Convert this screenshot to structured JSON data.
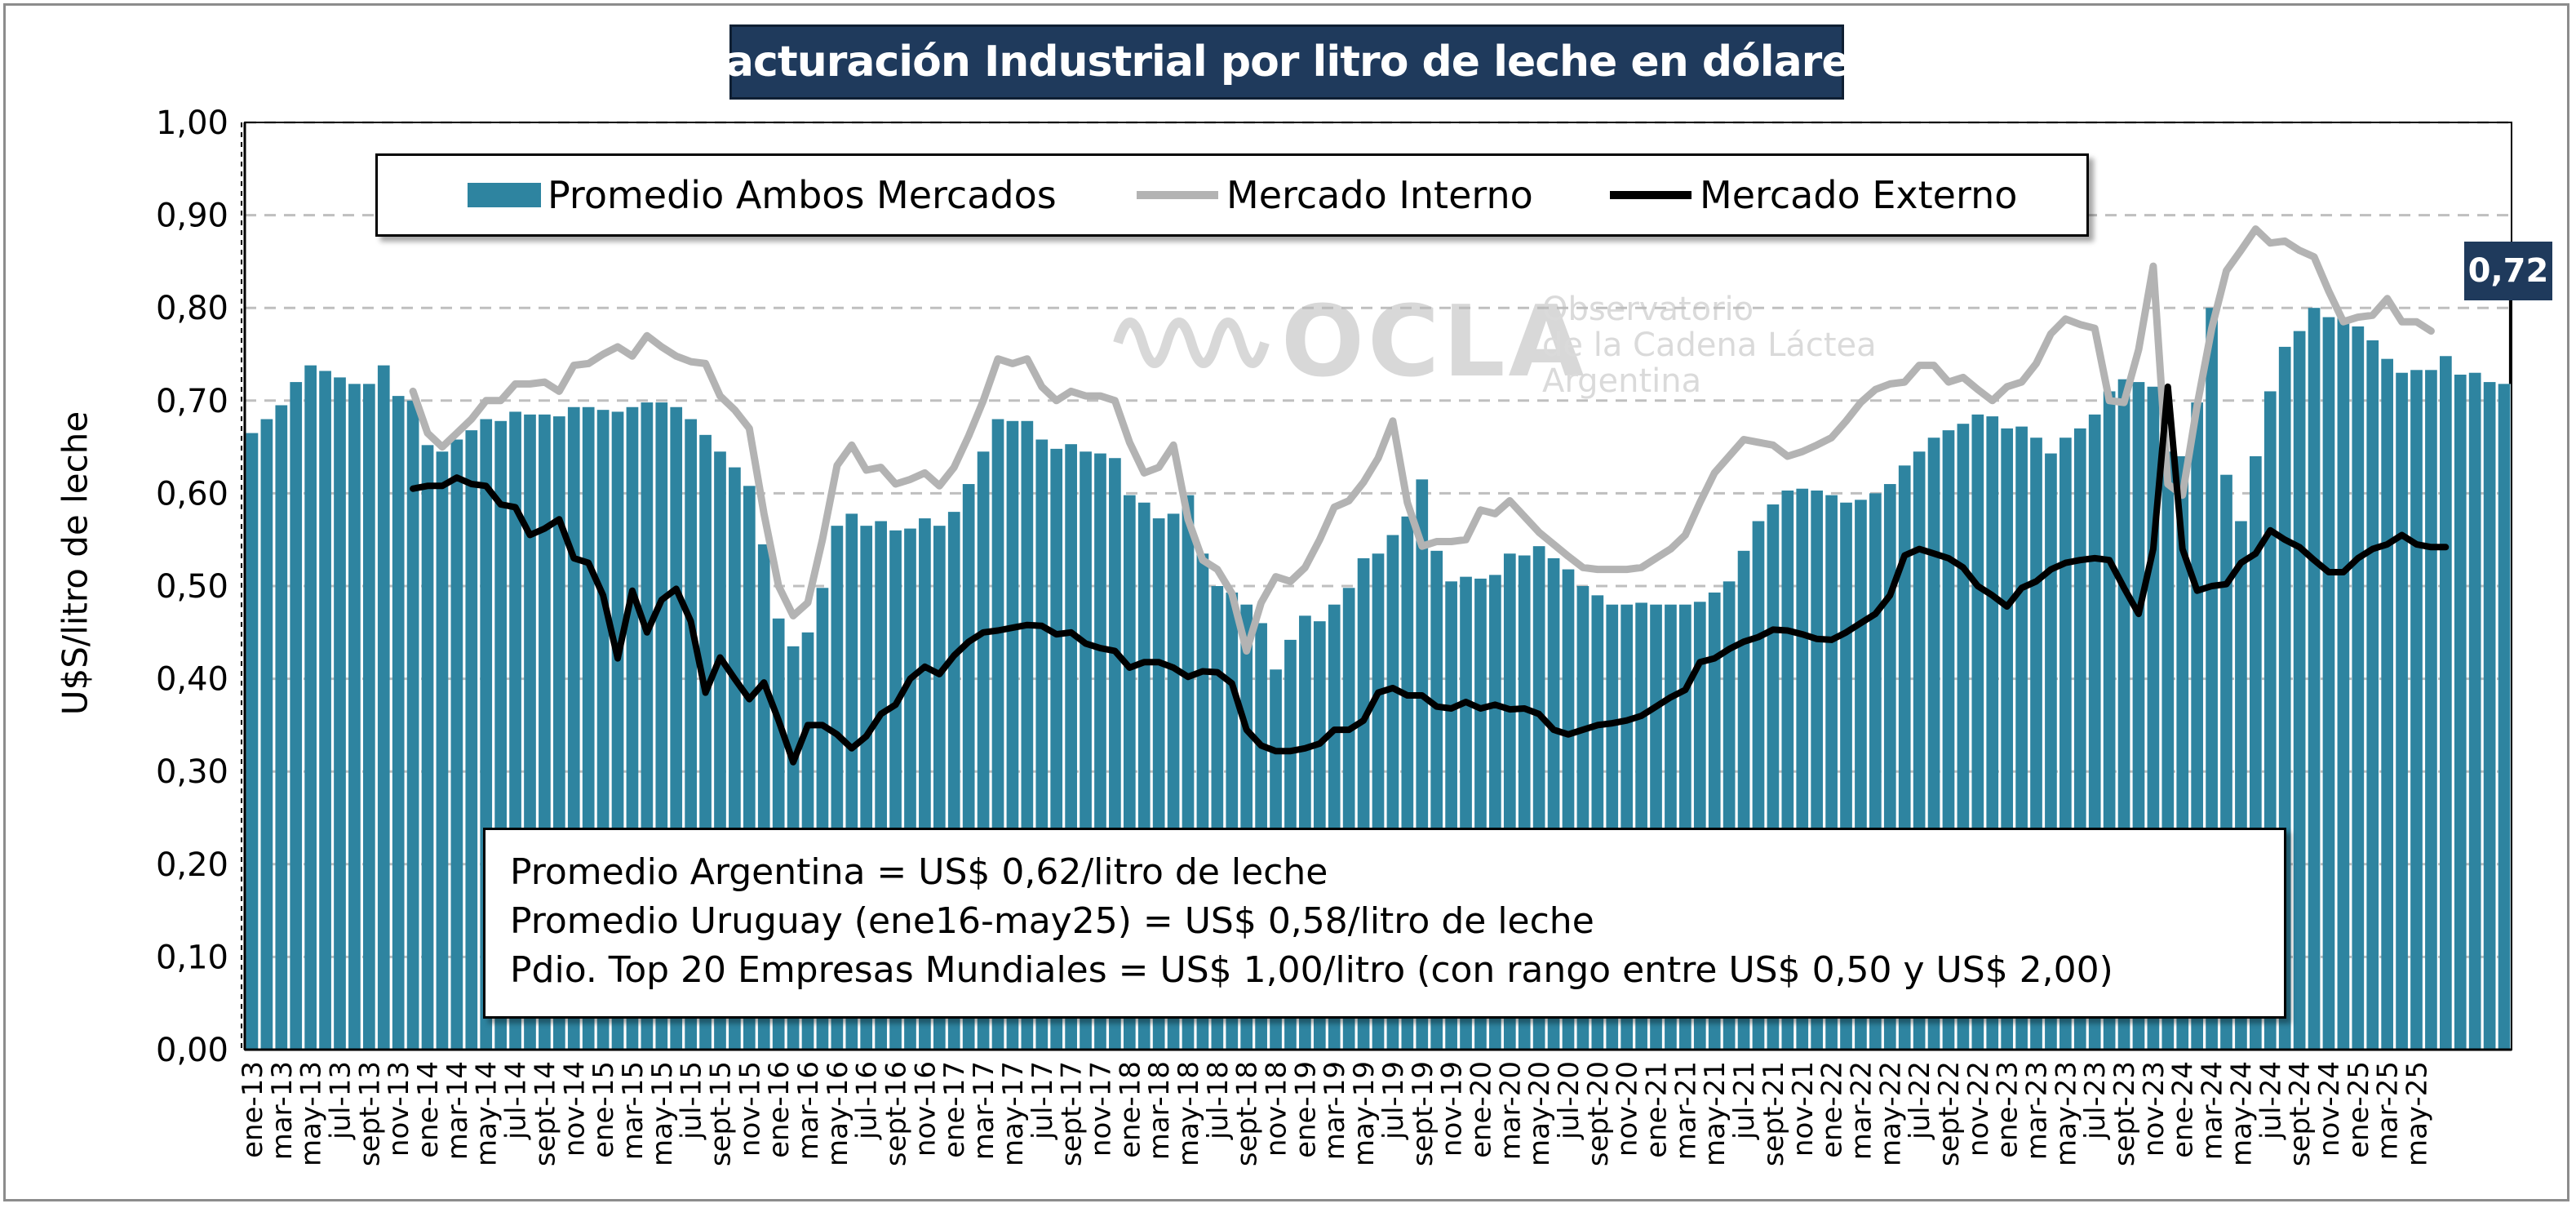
{
  "chart_data": {
    "type": "bar+line",
    "title": "Facturación Industrial por litro de leche en dólares",
    "ylabel": "U$S/litro de leche",
    "ylim": [
      0,
      1.0
    ],
    "yticks": [
      "0,00",
      "0,10",
      "0,20",
      "0,30",
      "0,40",
      "0,50",
      "0,60",
      "0,70",
      "0,80",
      "0,90",
      "1,00"
    ],
    "x_first_month": "ene-13",
    "xticks_every": 2,
    "xtick_labels": [
      "ene-13",
      "mar-13",
      "may-13",
      "jul-13",
      "sept-13",
      "nov-13",
      "ene-14",
      "mar-14",
      "may-14",
      "jul-14",
      "sept-14",
      "nov-14",
      "ene-15",
      "mar-15",
      "may-15",
      "jul-15",
      "sept-15",
      "nov-15",
      "ene-16",
      "mar-16",
      "may-16",
      "jul-16",
      "sept-16",
      "nov-16",
      "ene-17",
      "mar-17",
      "may-17",
      "jul-17",
      "sept-17",
      "nov-17",
      "ene-18",
      "mar-18",
      "may-18",
      "jul-18",
      "sept-18",
      "nov-18",
      "ene-19",
      "mar-19",
      "may-19",
      "jul-19",
      "sept-19",
      "nov-19",
      "ene-20",
      "mar-20",
      "may-20",
      "jul-20",
      "sept-20",
      "nov-20",
      "ene-21",
      "mar-21",
      "may-21",
      "jul-21",
      "sept-21",
      "nov-21",
      "ene-22",
      "mar-22",
      "may-22",
      "jul-22",
      "sept-22",
      "nov-22",
      "ene-23",
      "mar-23",
      "may-23",
      "jul-23",
      "sept-23",
      "nov-23",
      "ene-24",
      "mar-24",
      "may-24",
      "jul-24",
      "sept-24",
      "nov-24",
      "ene-25",
      "mar-25",
      "may-25"
    ],
    "legend": {
      "position": "top",
      "entries": [
        "Promedio Ambos Mercados",
        "Mercado Interno",
        "Mercado Externo"
      ]
    },
    "grid": "horizontal dashed",
    "series": [
      {
        "name": "Promedio Ambos Mercados",
        "kind": "bar",
        "color": "#2e84a0",
        "values": [
          0.665,
          0.68,
          0.695,
          0.72,
          0.738,
          0.732,
          0.725,
          0.718,
          0.718,
          0.738,
          0.705,
          0.7,
          0.652,
          0.645,
          0.658,
          0.668,
          0.68,
          0.678,
          0.688,
          0.685,
          0.685,
          0.683,
          0.693,
          0.693,
          0.69,
          0.688,
          0.693,
          0.698,
          0.698,
          0.693,
          0.68,
          0.663,
          0.645,
          0.628,
          0.608,
          0.545,
          0.465,
          0.435,
          0.45,
          0.498,
          0.565,
          0.578,
          0.565,
          0.57,
          0.56,
          0.562,
          0.573,
          0.565,
          0.58,
          0.61,
          0.645,
          0.68,
          0.678,
          0.678,
          0.658,
          0.648,
          0.653,
          0.645,
          0.643,
          0.638,
          0.598,
          0.59,
          0.573,
          0.578,
          0.598,
          0.535,
          0.5,
          0.493,
          0.48,
          0.46,
          0.41,
          0.442,
          0.468,
          0.462,
          0.48,
          0.498,
          0.53,
          0.535,
          0.555,
          0.575,
          0.615,
          0.538,
          0.505,
          0.51,
          0.508,
          0.512,
          0.535,
          0.533,
          0.543,
          0.53,
          0.518,
          0.5,
          0.49,
          0.48,
          0.48,
          0.482,
          0.48,
          0.48,
          0.48,
          0.483,
          0.493,
          0.505,
          0.538,
          0.57,
          0.588,
          0.603,
          0.605,
          0.603,
          0.598,
          0.59,
          0.593,
          0.6,
          0.61,
          0.63,
          0.645,
          0.66,
          0.668,
          0.675,
          0.685,
          0.683,
          0.67,
          0.672,
          0.66,
          0.643,
          0.66,
          0.67,
          0.685,
          0.71,
          0.723,
          0.72,
          0.715,
          0.645,
          0.64,
          0.698,
          0.8,
          0.62,
          0.57,
          0.64,
          0.71,
          0.758,
          0.775,
          0.8,
          0.79,
          0.79,
          0.78,
          0.765,
          0.745,
          0.73,
          0.733,
          0.733,
          0.748,
          0.728,
          0.73,
          0.72,
          0.718
        ]
      },
      {
        "name": "Mercado Interno",
        "kind": "line",
        "color": "#b3b3b3",
        "start_month": "dic-13",
        "values": [
          0.71,
          0.665,
          0.65,
          0.665,
          0.68,
          0.7,
          0.7,
          0.718,
          0.718,
          0.72,
          0.71,
          0.738,
          0.74,
          0.75,
          0.758,
          0.748,
          0.77,
          0.758,
          0.748,
          0.742,
          0.74,
          0.705,
          0.69,
          0.67,
          0.578,
          0.5,
          0.468,
          0.482,
          0.55,
          0.63,
          0.652,
          0.625,
          0.628,
          0.61,
          0.615,
          0.622,
          0.608,
          0.628,
          0.662,
          0.7,
          0.745,
          0.74,
          0.745,
          0.715,
          0.7,
          0.71,
          0.705,
          0.705,
          0.7,
          0.655,
          0.622,
          0.628,
          0.652,
          0.572,
          0.528,
          0.518,
          0.492,
          0.43,
          0.482,
          0.51,
          0.505,
          0.52,
          0.55,
          0.585,
          0.592,
          0.612,
          0.638,
          0.678,
          0.59,
          0.543,
          0.548,
          0.548,
          0.55,
          0.582,
          0.578,
          0.592,
          0.575,
          0.558,
          0.545,
          0.532,
          0.52,
          0.518,
          0.518,
          0.518,
          0.52,
          0.53,
          0.54,
          0.555,
          0.59,
          0.622,
          0.64,
          0.658,
          0.655,
          0.652,
          0.64,
          0.645,
          0.652,
          0.66,
          0.678,
          0.698,
          0.712,
          0.718,
          0.72,
          0.738,
          0.738,
          0.72,
          0.725,
          0.712,
          0.7,
          0.715,
          0.72,
          0.74,
          0.772,
          0.788,
          0.782,
          0.778,
          0.7,
          0.698,
          0.755,
          0.845,
          0.61,
          0.598,
          0.695,
          0.778,
          0.84,
          0.862,
          0.885,
          0.87,
          0.872,
          0.862,
          0.855,
          0.818,
          0.785,
          0.79,
          0.792,
          0.81,
          0.785,
          0.785,
          0.775
        ]
      },
      {
        "name": "Mercado Externo",
        "kind": "line",
        "color": "#000000",
        "start_month": "dic-13",
        "values": [
          0.605,
          0.608,
          0.608,
          0.617,
          0.61,
          0.608,
          0.588,
          0.585,
          0.555,
          0.562,
          0.572,
          0.53,
          0.525,
          0.49,
          0.422,
          0.495,
          0.45,
          0.485,
          0.497,
          0.462,
          0.385,
          0.423,
          0.4,
          0.378,
          0.396,
          0.355,
          0.31,
          0.35,
          0.35,
          0.34,
          0.325,
          0.338,
          0.362,
          0.372,
          0.4,
          0.413,
          0.405,
          0.425,
          0.44,
          0.45,
          0.452,
          0.455,
          0.458,
          0.457,
          0.448,
          0.45,
          0.438,
          0.433,
          0.43,
          0.412,
          0.418,
          0.418,
          0.412,
          0.402,
          0.408,
          0.407,
          0.395,
          0.345,
          0.328,
          0.322,
          0.322,
          0.325,
          0.33,
          0.345,
          0.345,
          0.355,
          0.385,
          0.39,
          0.382,
          0.382,
          0.37,
          0.368,
          0.375,
          0.368,
          0.372,
          0.367,
          0.368,
          0.362,
          0.345,
          0.34,
          0.345,
          0.35,
          0.352,
          0.355,
          0.36,
          0.37,
          0.38,
          0.388,
          0.418,
          0.422,
          0.432,
          0.44,
          0.445,
          0.453,
          0.452,
          0.448,
          0.443,
          0.442,
          0.45,
          0.46,
          0.47,
          0.49,
          0.533,
          0.54,
          0.535,
          0.53,
          0.52,
          0.5,
          0.49,
          0.478,
          0.498,
          0.505,
          0.518,
          0.525,
          0.528,
          0.53,
          0.528,
          0.498,
          0.47,
          0.54,
          0.715,
          0.54,
          0.495,
          0.5,
          0.502,
          0.525,
          0.535,
          0.56,
          0.55,
          0.542,
          0.528,
          0.515,
          0.515,
          0.53,
          0.54,
          0.545,
          0.555,
          0.545,
          0.542,
          0.542
        ]
      }
    ],
    "last_value_label": "0,72",
    "notes": [
      "Promedio Argentina = US$ 0,62/litro de leche",
      "Promedio Uruguay (ene16-may25) = US$ 0,58/litro de leche",
      "Pdio. Top 20 Empresas Mundiales = US$ 1,00/litro (con rango entre US$ 0,50 y US$ 2,00)"
    ]
  },
  "watermark": {
    "logo": "OCLA",
    "line1": "Observatorio",
    "line2": "de la Cadena Láctea",
    "line3": "Argentina"
  }
}
